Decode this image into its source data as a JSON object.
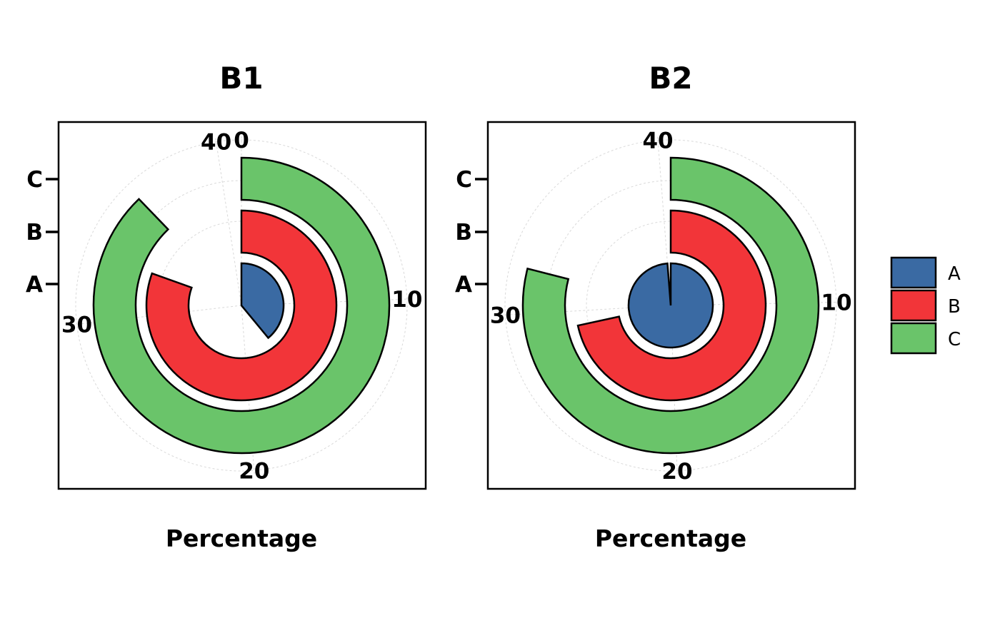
{
  "chart_data": [
    {
      "type": "radial-bar",
      "title": "B1",
      "xlabel": "Percentage",
      "theta_ticks": [
        "0",
        "10",
        "20",
        "30",
        "40"
      ],
      "theta_tick_values": [
        0,
        10,
        20,
        30,
        40
      ],
      "theta_range": [
        0,
        41
      ],
      "categories": [
        "A",
        "B",
        "C"
      ],
      "values": [
        16,
        33,
        36
      ],
      "colors": [
        "#3A6AA3",
        "#F23539",
        "#6AC46A"
      ]
    },
    {
      "type": "radial-bar",
      "title": "B2",
      "xlabel": "Percentage",
      "theta_ticks": [
        "40",
        "10",
        "20",
        "30"
      ],
      "theta_tick_values": [
        40,
        10,
        20,
        30
      ],
      "theta_range": [
        0,
        40.5
      ],
      "categories": [
        "A",
        "B",
        "C"
      ],
      "values": [
        40,
        29,
        32
      ],
      "colors": [
        "#3A6AA3",
        "#F23539",
        "#6AC46A"
      ]
    }
  ],
  "legend": {
    "placement": "right",
    "items": [
      {
        "label": "A",
        "color": "#3A6AA3"
      },
      {
        "label": "B",
        "color": "#F23539"
      },
      {
        "label": "C",
        "color": "#6AC46A"
      }
    ]
  }
}
